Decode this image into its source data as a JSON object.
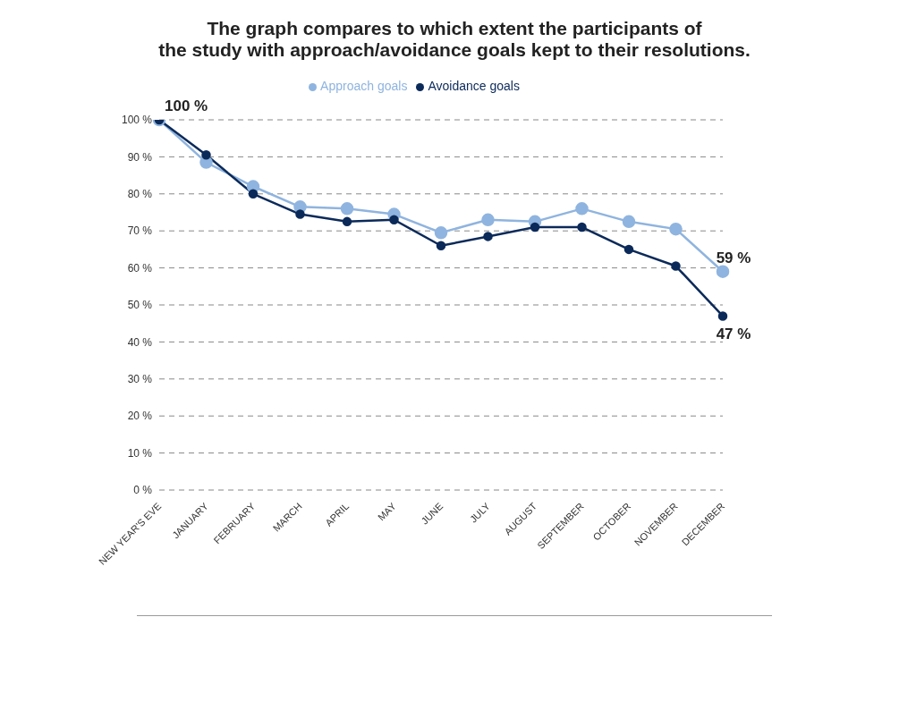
{
  "chart_data": {
    "type": "line",
    "title": "The graph compares to which extent the participants of\nthe study with approach/avoidance goals kept to their resolutions.",
    "categories": [
      "NEW YEAR'S EVE",
      "JANUARY",
      "FEBRUARY",
      "MARCH",
      "APRIL",
      "MAY",
      "JUNE",
      "JULY",
      "AUGUST",
      "SEPTEMBER",
      "OCTOBER",
      "NOVEMBER",
      "DECEMBER"
    ],
    "series": [
      {
        "name": "Approach goals",
        "color": "#8fb4df",
        "values": [
          100,
          88.5,
          82,
          76.5,
          76,
          74.5,
          69.5,
          73,
          72.5,
          76,
          72.5,
          70.5,
          59
        ],
        "value_labels": [
          null,
          null,
          null,
          null,
          null,
          null,
          null,
          null,
          null,
          null,
          null,
          null,
          "59 %"
        ]
      },
      {
        "name": "Avoidance goals",
        "color": "#0b2a5a",
        "values": [
          100,
          90.5,
          80,
          74.5,
          72.5,
          73,
          66,
          68.5,
          71,
          71,
          65,
          60.5,
          47
        ],
        "value_labels": [
          "100 %",
          null,
          null,
          null,
          null,
          null,
          null,
          null,
          null,
          null,
          null,
          null,
          "47 %"
        ]
      }
    ],
    "ylim": [
      0,
      100
    ],
    "yticks": [
      {
        "value": 0,
        "label": "0 %"
      },
      {
        "value": 10,
        "label": "10 %"
      },
      {
        "value": 20,
        "label": "20 %"
      },
      {
        "value": 30,
        "label": "30 %"
      },
      {
        "value": 40,
        "label": "40 %"
      },
      {
        "value": 50,
        "label": "50 %"
      },
      {
        "value": 60,
        "label": "60 %"
      },
      {
        "value": 70,
        "label": "70 %"
      },
      {
        "value": 80,
        "label": "80 %"
      },
      {
        "value": 90,
        "label": "90 %"
      },
      {
        "value": 100,
        "label": "100 %"
      }
    ],
    "grid": "y",
    "legend": "top",
    "marker": "circle",
    "line_style": "solid"
  }
}
